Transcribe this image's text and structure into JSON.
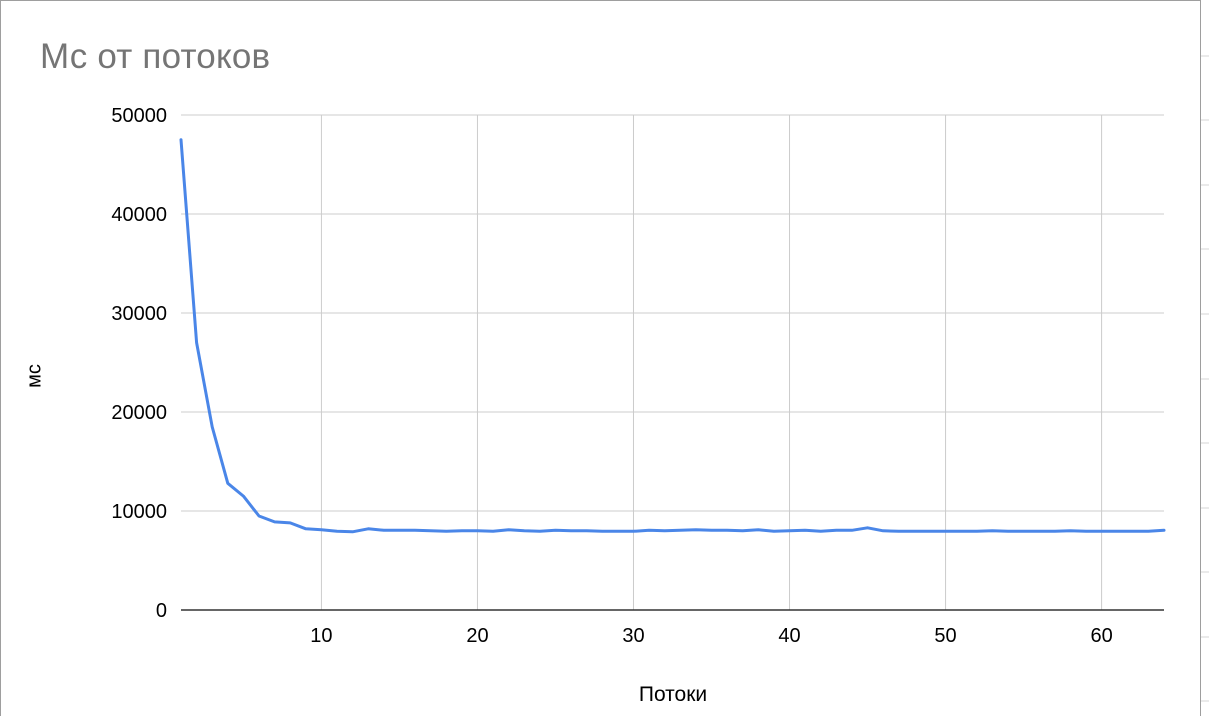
{
  "chart_data": {
    "type": "line",
    "title": "Мс от потоков",
    "xlabel": "Потоки",
    "ylabel": "мс",
    "xlim": [
      1,
      64
    ],
    "ylim": [
      0,
      50000
    ],
    "x_ticks": [
      10,
      20,
      30,
      40,
      50,
      60
    ],
    "y_ticks": [
      0,
      10000,
      20000,
      30000,
      40000,
      50000
    ],
    "grid": true,
    "series": [
      {
        "name": "мс",
        "color": "#4a86e8",
        "x": [
          1,
          2,
          3,
          4,
          5,
          6,
          7,
          8,
          9,
          10,
          11,
          12,
          13,
          14,
          15,
          16,
          17,
          18,
          19,
          20,
          21,
          22,
          23,
          24,
          25,
          26,
          27,
          28,
          29,
          30,
          31,
          32,
          33,
          34,
          35,
          36,
          37,
          38,
          39,
          40,
          41,
          42,
          43,
          44,
          45,
          46,
          47,
          48,
          49,
          50,
          51,
          52,
          53,
          54,
          55,
          56,
          57,
          58,
          59,
          60,
          61,
          62,
          63,
          64
        ],
        "values": [
          47500,
          27000,
          18500,
          12800,
          11500,
          9500,
          8900,
          8800,
          8200,
          8100,
          7950,
          7900,
          8200,
          8050,
          8050,
          8050,
          8000,
          7950,
          8000,
          8000,
          7950,
          8100,
          8000,
          7950,
          8050,
          8000,
          8000,
          7950,
          7950,
          7950,
          8050,
          8000,
          8050,
          8100,
          8050,
          8050,
          8000,
          8100,
          7950,
          8000,
          8050,
          7950,
          8050,
          8050,
          8300,
          8000,
          7950,
          7950,
          7950,
          7950,
          7950,
          7950,
          8000,
          7950,
          7950,
          7950,
          7950,
          8000,
          7950,
          7950,
          7950,
          7950,
          7950,
          8050
        ]
      }
    ]
  }
}
